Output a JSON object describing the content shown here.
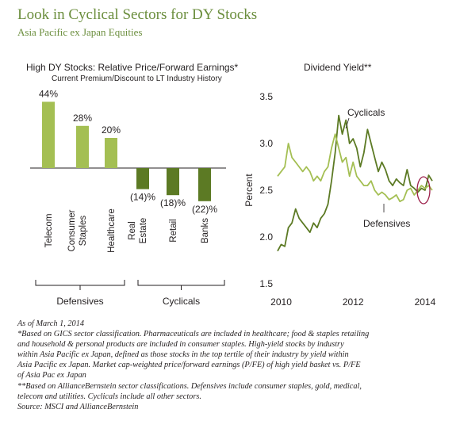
{
  "title": "Look in Cyclical Sectors for DY Stocks",
  "subtitle": "Asia Pacific ex Japan Equities",
  "colors": {
    "title": "#6b8e3d",
    "light_green": "#a4bf53",
    "dark_green": "#5c7a24",
    "highlight_circle": "#9b1d48"
  },
  "chart_data": [
    {
      "type": "bar",
      "title": "High DY Stocks: Relative Price/Forward Earnings*",
      "subtitle": "Current Premium/Discount to LT Industry History",
      "categories": [
        "Telecom",
        "Consumer Staples",
        "Healthcare",
        "Real Estate",
        "Retail",
        "Banks"
      ],
      "category_lines": [
        [
          "Telecom"
        ],
        [
          "Consumer",
          "Staples"
        ],
        [
          "Healthcare"
        ],
        [
          "Real",
          "Estate"
        ],
        [
          "Retail"
        ],
        [
          "Banks"
        ]
      ],
      "values": [
        44,
        28,
        20,
        -14,
        -18,
        -22
      ],
      "value_labels": [
        "44%",
        "28%",
        "20%",
        "(14)%",
        "(18)%",
        "(22)%"
      ],
      "groups": [
        {
          "name": "Defensives",
          "categories": [
            "Telecom",
            "Consumer Staples",
            "Healthcare"
          ]
        },
        {
          "name": "Cyclicals",
          "categories": [
            "Real Estate",
            "Retail",
            "Banks"
          ]
        }
      ]
    },
    {
      "type": "line",
      "title": "Dividend Yield**",
      "ylabel": "Percent",
      "ylim": [
        1.5,
        3.5
      ],
      "yticks": [
        "1.5",
        "2.0",
        "2.5",
        "3.0",
        "3.5"
      ],
      "xlim": [
        2009.9,
        2014.2
      ],
      "xticks": [
        "2010",
        "2012",
        "2014"
      ],
      "series": [
        {
          "name": "Cyclicals",
          "x": [
            2009.9,
            2010.0,
            2010.1,
            2010.2,
            2010.3,
            2010.4,
            2010.5,
            2010.6,
            2010.7,
            2010.8,
            2010.9,
            2011.0,
            2011.1,
            2011.2,
            2011.3,
            2011.4,
            2011.5,
            2011.6,
            2011.7,
            2011.8,
            2011.9,
            2012.0,
            2012.1,
            2012.2,
            2012.3,
            2012.4,
            2012.5,
            2012.6,
            2012.7,
            2012.8,
            2012.9,
            2013.0,
            2013.1,
            2013.2,
            2013.3,
            2013.4,
            2013.5,
            2013.6,
            2013.7,
            2013.8,
            2013.9,
            2014.0,
            2014.1,
            2014.2
          ],
          "values": [
            1.85,
            1.92,
            1.9,
            2.1,
            2.15,
            2.3,
            2.2,
            2.15,
            2.1,
            2.05,
            2.15,
            2.1,
            2.2,
            2.25,
            2.35,
            2.6,
            2.9,
            3.3,
            3.1,
            3.25,
            3.0,
            3.05,
            2.95,
            2.75,
            2.9,
            3.15,
            3.0,
            2.85,
            2.7,
            2.8,
            2.72,
            2.6,
            2.55,
            2.62,
            2.58,
            2.55,
            2.72,
            2.55,
            2.52,
            2.48,
            2.52,
            2.5,
            2.66,
            2.6
          ]
        },
        {
          "name": "Defensives",
          "x": [
            2009.9,
            2010.0,
            2010.1,
            2010.2,
            2010.3,
            2010.4,
            2010.5,
            2010.6,
            2010.7,
            2010.8,
            2010.9,
            2011.0,
            2011.1,
            2011.2,
            2011.3,
            2011.4,
            2011.5,
            2011.6,
            2011.7,
            2011.8,
            2011.9,
            2012.0,
            2012.1,
            2012.2,
            2012.3,
            2012.4,
            2012.5,
            2012.6,
            2012.7,
            2012.8,
            2012.9,
            2013.0,
            2013.1,
            2013.2,
            2013.3,
            2013.4,
            2013.5,
            2013.6,
            2013.7,
            2013.8,
            2013.9,
            2014.0,
            2014.1,
            2014.2
          ],
          "values": [
            2.65,
            2.7,
            2.75,
            3.0,
            2.85,
            2.8,
            2.75,
            2.7,
            2.75,
            2.7,
            2.6,
            2.65,
            2.6,
            2.7,
            2.75,
            2.95,
            3.1,
            2.95,
            2.8,
            2.85,
            2.65,
            2.8,
            2.65,
            2.6,
            2.55,
            2.55,
            2.6,
            2.5,
            2.45,
            2.48,
            2.45,
            2.4,
            2.42,
            2.45,
            2.38,
            2.4,
            2.5,
            2.52,
            2.45,
            2.5,
            2.55,
            2.52,
            2.55,
            2.5
          ]
        }
      ],
      "annotations": [
        "Cyclicals",
        "Defensives"
      ]
    }
  ],
  "footnotes": {
    "as_of": "As of March 1, 2014",
    "note1": "*Based on GICS sector classification. Pharmaceuticals are included in healthcare; food & staples retailing\nand household & personal products are included in consumer staples. High-yield stocks by industry\nwithin Asia Pacific ex Japan, defined as those stocks in the top tertile of their industry by yield within\nAsia Pacific ex Japan. Market cap-weighted price/forward earnings (P/FE) of high yield basket vs. P/FE\nof Asia Pac ex Japan",
    "note2": "**Based on AllianceBernstein sector classifications. Defensives include consumer staples, gold, medical,\ntelecom and utilities. Cyclicals include all other sectors.",
    "source": "Source: MSCI and AllianceBernstein"
  }
}
